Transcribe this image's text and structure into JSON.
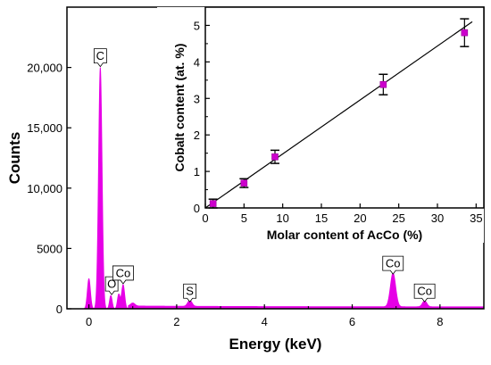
{
  "chart_data": [
    {
      "type": "area",
      "xlabel": "Energy (keV)",
      "ylabel": "Counts",
      "xlim": [
        -0.5,
        9
      ],
      "ylim": [
        0,
        25000
      ],
      "x_ticks": [
        0,
        2,
        4,
        6,
        8
      ],
      "x_tick_labels": [
        "0",
        "2",
        "4",
        "6",
        "8"
      ],
      "y_ticks": [
        0,
        5000,
        10000,
        15000,
        20000
      ],
      "y_tick_labels": [
        "0",
        "5000",
        "10,000",
        "15,000",
        "20,000"
      ],
      "color": "#e600e6",
      "peaks": [
        {
          "x": 0.0,
          "y": 2500
        },
        {
          "x": 0.26,
          "y": 20000
        },
        {
          "x": 0.5,
          "y": 1100
        },
        {
          "x": 0.68,
          "y": 1200
        },
        {
          "x": 0.78,
          "y": 2000
        },
        {
          "x": 1.0,
          "y": 250
        },
        {
          "x": 2.3,
          "y": 500
        },
        {
          "x": 6.93,
          "y": 2800
        },
        {
          "x": 7.65,
          "y": 500
        }
      ],
      "annotations": [
        {
          "text": "C",
          "x": 0.26,
          "y": 20000
        },
        {
          "text": "O",
          "x": 0.52,
          "y": 1100
        },
        {
          "text": "Co",
          "x": 0.78,
          "y": 2000
        },
        {
          "text": "S",
          "x": 2.3,
          "y": 500
        },
        {
          "text": "Co",
          "x": 6.93,
          "y": 2800
        },
        {
          "text": "Co",
          "x": 7.65,
          "y": 500
        }
      ]
    },
    {
      "type": "scatter",
      "xlabel": "Molar content of AcCo (%)",
      "ylabel": "Cobalt content (at. %)",
      "xlim": [
        0,
        36
      ],
      "ylim": [
        0,
        5.5
      ],
      "x_ticks": [
        0,
        5,
        10,
        15,
        20,
        25,
        30,
        35
      ],
      "x_tick_labels": [
        "0",
        "5",
        "10",
        "15",
        "20",
        "25",
        "30",
        "35"
      ],
      "y_ticks": [
        0,
        1,
        2,
        3,
        4,
        5
      ],
      "y_tick_labels": [
        "0",
        "1",
        "2",
        "3",
        "4",
        "5"
      ],
      "marker_color": "#cc00cc",
      "points": [
        {
          "x": 1,
          "y": 0.12,
          "err": 0.12
        },
        {
          "x": 5,
          "y": 0.68,
          "err": 0.12
        },
        {
          "x": 9,
          "y": 1.4,
          "err": 0.18
        },
        {
          "x": 23,
          "y": 3.38,
          "err": 0.28
        },
        {
          "x": 33.5,
          "y": 4.8,
          "err": 0.38
        }
      ],
      "fit_line": {
        "x": [
          0,
          34.5
        ],
        "y": [
          0,
          5.1
        ]
      }
    }
  ]
}
